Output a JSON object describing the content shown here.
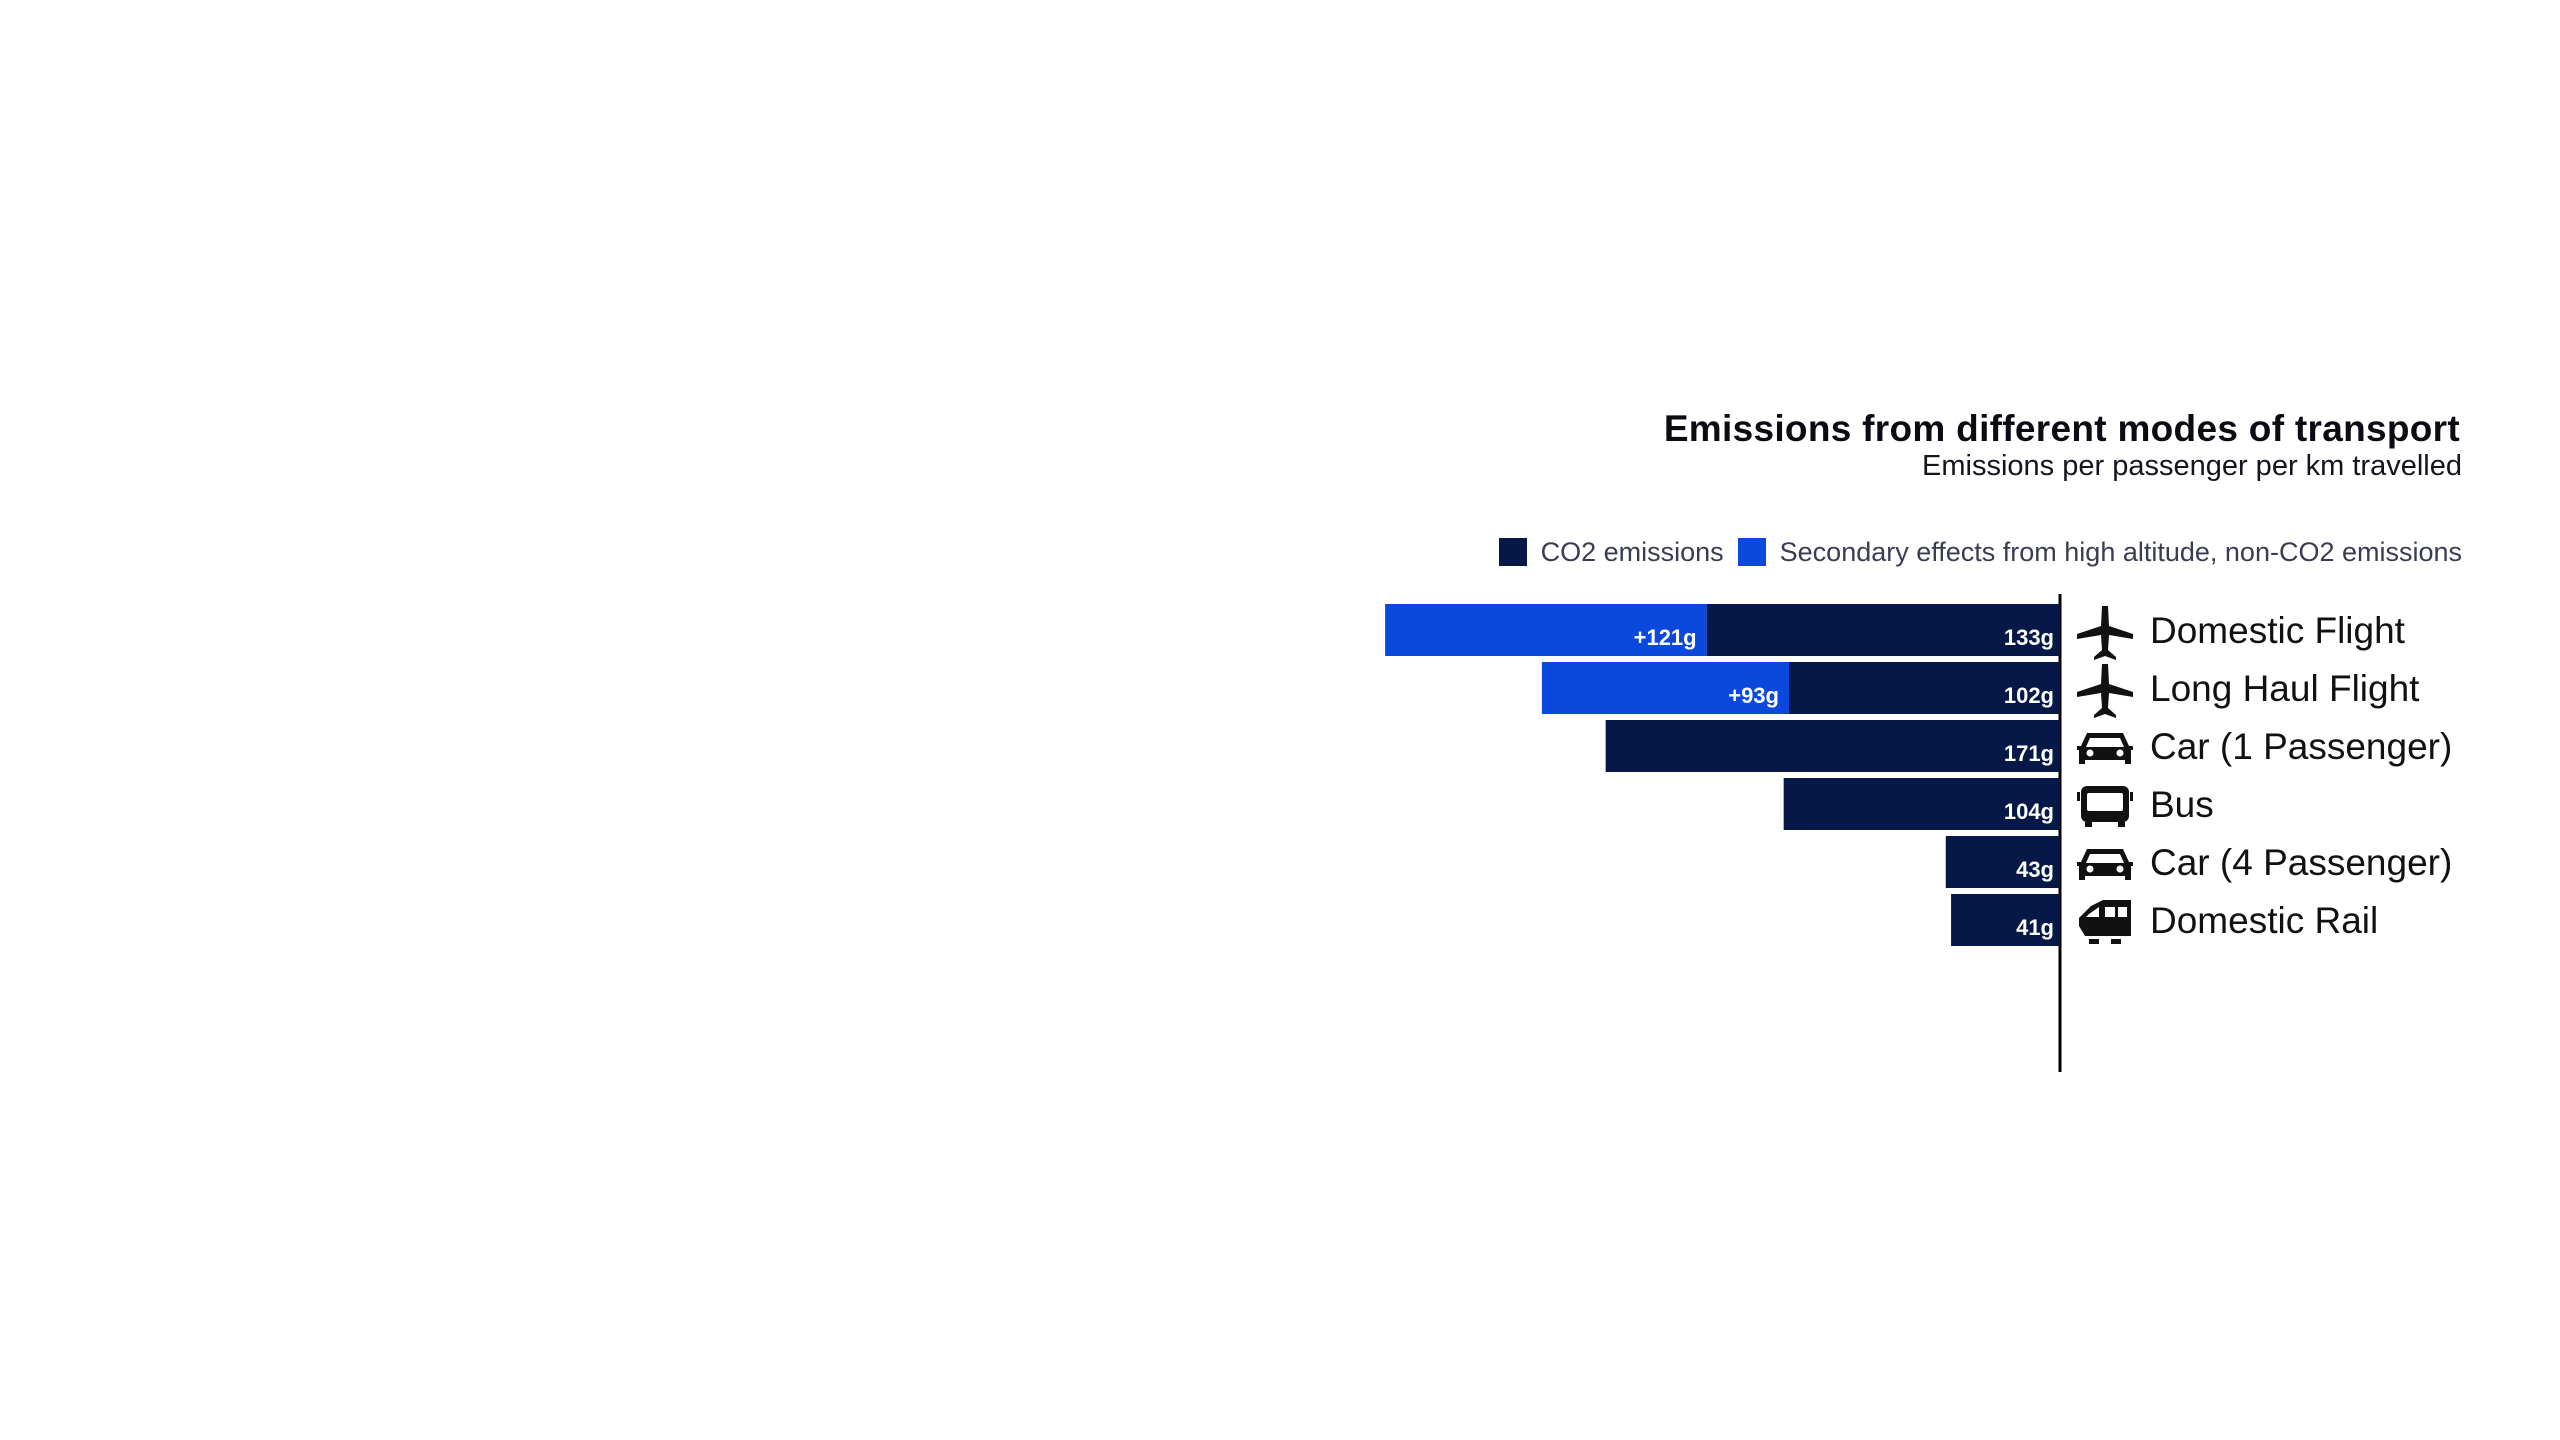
{
  "colors": {
    "co2": "#061848",
    "secondary": "#0a48de",
    "axis": "#000000",
    "background": "#ffffff"
  },
  "chart_data": {
    "type": "bar",
    "orientation": "horizontal-stacked",
    "title": "Emissions from different modes of transport",
    "subtitle": "Emissions per passenger per km travelled",
    "categories": [
      "Domestic Flight",
      "Long Haul Flight",
      "Car (1 Passenger)",
      "Bus",
      "Car (4 Passenger)",
      "Domestic Rail"
    ],
    "icons": [
      "airplane-icon",
      "airplane-icon",
      "car-icon",
      "bus-icon",
      "car-icon",
      "train-icon"
    ],
    "series": [
      {
        "name": "CO2 emissions",
        "values": [
          133,
          102,
          171,
          104,
          43,
          41
        ],
        "labels": [
          "133g",
          "102g",
          "171g",
          "104g",
          "43g",
          "41g"
        ]
      },
      {
        "name": "Secondary effects from high altitude, non-CO2 emissions",
        "values": [
          121,
          93,
          0,
          0,
          0,
          0
        ],
        "labels": [
          "+121g",
          "+93g",
          "",
          "",
          "",
          ""
        ]
      }
    ],
    "legend_position": "top",
    "grid": false
  }
}
